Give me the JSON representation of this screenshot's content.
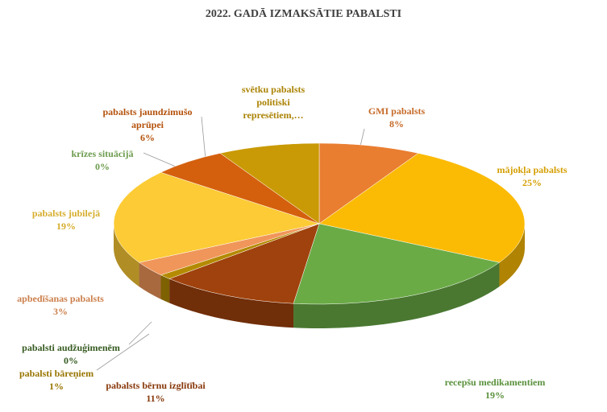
{
  "chart_data": {
    "type": "pie",
    "title": "2022. GADĀ IZMAKSĀTIE PABALSTI",
    "categories": [
      "GMI pabalsts",
      "mājokļa pabalsts",
      "recepšu medikamentiem",
      "pabalsts bērnu izglītībai",
      "pabalsti bāreņiem",
      "pabalsti audžuģimenēm",
      "apbedīšanas pabalsts",
      "pabalsts jubilejā",
      "krīzes situācijā",
      "pabalsts jaundzimušo aprūpei",
      "svētku pabalsts politiski represētiem,…"
    ],
    "values": [
      8,
      25,
      19,
      11,
      1,
      0,
      3,
      19,
      0,
      6,
      8
    ],
    "value_labels": [
      "8%",
      "25%",
      "19%",
      "11%",
      "1%",
      "0%",
      "3%",
      "19%",
      "0%",
      "6%",
      null
    ],
    "colors": [
      "#e97e31",
      "#fbbb04",
      "#6aab46",
      "#a0420d",
      "#b48a00",
      "#3f6b27",
      "#f0965a",
      "#fccb35",
      "#80b85c",
      "#d4600e",
      "#c99a05"
    ]
  }
}
